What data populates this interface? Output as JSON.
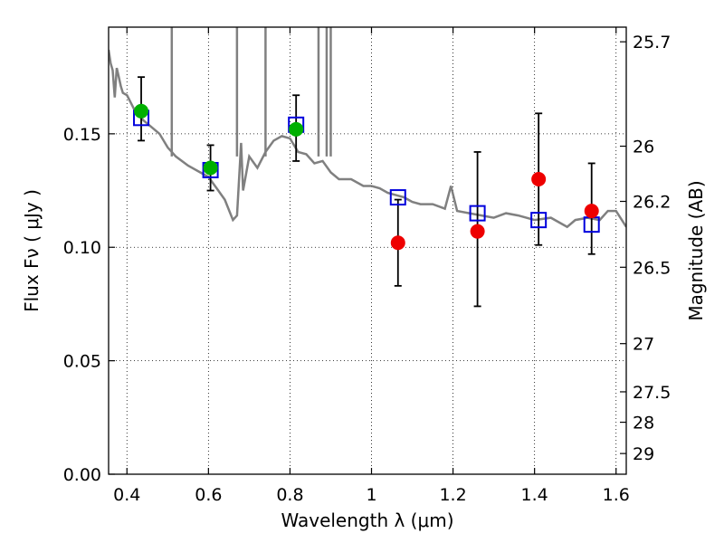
{
  "chart_data": {
    "type": "scatter",
    "xlabel": "Wavelength  λ (μm)",
    "ylabel_left": "Flux  Fν  ( μJy )",
    "ylabel_right": "Magnitude (AB)",
    "xlim": [
      0.355,
      1.625
    ],
    "ylim": [
      0.0,
      0.197
    ],
    "grid": true,
    "x_ticks": [
      0.4,
      0.6,
      0.8,
      1.0,
      1.2,
      1.4,
      1.6
    ],
    "x_tick_labels": [
      "0.4",
      "0.6",
      "0.8",
      "1",
      "1.2",
      "1.4",
      "1.6"
    ],
    "y_ticks": [
      0.0,
      0.05,
      0.1,
      0.15
    ],
    "y_tick_labels": [
      "0.00",
      "0.05",
      "0.10",
      "0.15"
    ],
    "right_ticks": [
      {
        "label": "25.7",
        "value": 25.7
      },
      {
        "label": "26",
        "value": 26.0
      },
      {
        "label": "26.2",
        "value": 26.2
      },
      {
        "label": "26.5",
        "value": 26.5
      },
      {
        "label": "27",
        "value": 27.0
      },
      {
        "label": "27.5",
        "value": 27.5
      },
      {
        "label": "28",
        "value": 28.0
      },
      {
        "label": "29",
        "value": 29.0
      }
    ],
    "colors": {
      "model": "#808080",
      "green": "#00b000",
      "red": "#ee0000",
      "blue": "#0000dd",
      "error": "#000000"
    },
    "model_spectrum": [
      [
        0.355,
        0.187
      ],
      [
        0.36,
        0.181
      ],
      [
        0.365,
        0.178
      ],
      [
        0.37,
        0.166
      ],
      [
        0.375,
        0.179
      ],
      [
        0.38,
        0.175
      ],
      [
        0.385,
        0.171
      ],
      [
        0.39,
        0.168
      ],
      [
        0.4,
        0.167
      ],
      [
        0.42,
        0.16
      ],
      [
        0.44,
        0.156
      ],
      [
        0.46,
        0.153
      ],
      [
        0.48,
        0.15
      ],
      [
        0.5,
        0.144
      ],
      [
        0.52,
        0.14
      ],
      [
        0.55,
        0.136
      ],
      [
        0.58,
        0.133
      ],
      [
        0.6,
        0.131
      ],
      [
        0.62,
        0.126
      ],
      [
        0.64,
        0.121
      ],
      [
        0.66,
        0.112
      ],
      [
        0.67,
        0.114
      ],
      [
        0.68,
        0.146
      ],
      [
        0.685,
        0.125
      ],
      [
        0.7,
        0.14
      ],
      [
        0.72,
        0.135
      ],
      [
        0.74,
        0.142
      ],
      [
        0.76,
        0.147
      ],
      [
        0.78,
        0.149
      ],
      [
        0.8,
        0.148
      ],
      [
        0.82,
        0.142
      ],
      [
        0.84,
        0.141
      ],
      [
        0.86,
        0.137
      ],
      [
        0.88,
        0.138
      ],
      [
        0.9,
        0.133
      ],
      [
        0.92,
        0.13
      ],
      [
        0.95,
        0.13
      ],
      [
        0.98,
        0.127
      ],
      [
        1.0,
        0.127
      ],
      [
        1.02,
        0.126
      ],
      [
        1.04,
        0.124
      ],
      [
        1.06,
        0.123
      ],
      [
        1.08,
        0.122
      ],
      [
        1.1,
        0.12
      ],
      [
        1.12,
        0.119
      ],
      [
        1.15,
        0.119
      ],
      [
        1.18,
        0.117
      ],
      [
        1.195,
        0.127
      ],
      [
        1.21,
        0.116
      ],
      [
        1.24,
        0.115
      ],
      [
        1.27,
        0.114
      ],
      [
        1.3,
        0.113
      ],
      [
        1.33,
        0.115
      ],
      [
        1.36,
        0.114
      ],
      [
        1.4,
        0.112
      ],
      [
        1.44,
        0.113
      ],
      [
        1.48,
        0.109
      ],
      [
        1.5,
        0.112
      ],
      [
        1.53,
        0.113
      ],
      [
        1.56,
        0.112
      ],
      [
        1.58,
        0.116
      ],
      [
        1.6,
        0.116
      ],
      [
        1.625,
        0.109
      ]
    ],
    "model_spikes": [
      0.51,
      0.67,
      0.74,
      0.87,
      0.89,
      0.9
    ],
    "model_photometry": [
      {
        "x": 0.435,
        "y": 0.157
      },
      {
        "x": 0.605,
        "y": 0.134
      },
      {
        "x": 0.815,
        "y": 0.154
      },
      {
        "x": 1.065,
        "y": 0.122
      },
      {
        "x": 1.26,
        "y": 0.115
      },
      {
        "x": 1.41,
        "y": 0.112
      },
      {
        "x": 1.54,
        "y": 0.11
      }
    ],
    "observed_optical": [
      {
        "x": 0.435,
        "y": 0.16,
        "err_low": 0.147,
        "err_high": 0.175
      },
      {
        "x": 0.605,
        "y": 0.135,
        "err_low": 0.125,
        "err_high": 0.145
      },
      {
        "x": 0.815,
        "y": 0.152,
        "err_low": 0.138,
        "err_high": 0.167
      }
    ],
    "observed_infrared": [
      {
        "x": 1.065,
        "y": 0.102,
        "err_low": 0.083,
        "err_high": 0.121
      },
      {
        "x": 1.26,
        "y": 0.107,
        "err_low": 0.074,
        "err_high": 0.142
      },
      {
        "x": 1.41,
        "y": 0.13,
        "err_low": 0.101,
        "err_high": 0.159
      },
      {
        "x": 1.54,
        "y": 0.116,
        "err_low": 0.097,
        "err_high": 0.137
      }
    ]
  }
}
